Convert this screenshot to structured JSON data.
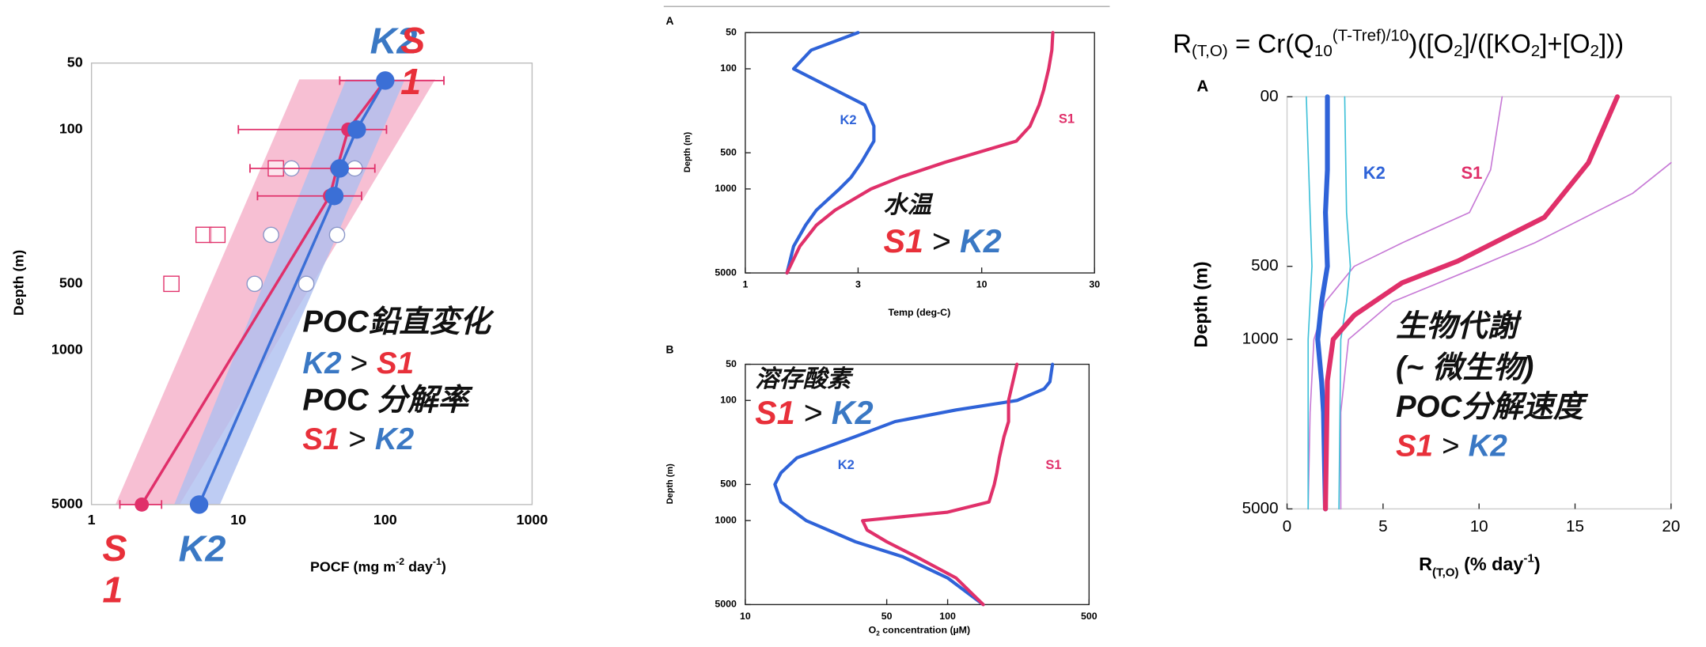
{
  "chart_data": [
    {
      "type": "line",
      "xlog": true,
      "ylog": true,
      "y_inverted": true,
      "xlim": [
        1,
        1000
      ],
      "ylim": [
        50,
        5000
      ],
      "xticks": [
        1,
        10,
        100,
        1000
      ],
      "yticks": [
        50,
        100,
        500,
        1000,
        5000
      ],
      "xlabel": [
        "POCF (mg m",
        "-2",
        " day",
        "-1",
        ")"
      ],
      "ylabel": "Depth (m)",
      "series": [
        {
          "color": "#e0306a",
          "marker": "square-open",
          "x": [
            18,
            5.8,
            7.2,
            3.5
          ],
          "y": [
            150,
            300,
            300,
            500
          ]
        },
        {
          "color": "#8a96c8",
          "marker": "circle-open",
          "x": [
            23,
            62,
            16.7,
            47,
            12.9,
            29
          ],
          "y": [
            150,
            150,
            300,
            300,
            500,
            500
          ]
        },
        {
          "name": "S1",
          "color": "#e0306a",
          "marker": "circle",
          "x": [
            100,
            56,
            47,
            42,
            2.2
          ],
          "y": [
            60,
            100,
            150,
            200,
            5000
          ],
          "x_low": [
            49,
            10,
            12,
            13.5,
            1.56
          ],
          "x_high": [
            251,
            102,
            85,
            69,
            3
          ]
        },
        {
          "name": "K2",
          "color": "#3b6fd6",
          "marker": "circle",
          "x": [
            100,
            64,
            49,
            45,
            5.4
          ],
          "y": [
            60,
            100,
            150,
            200,
            5000
          ]
        }
      ],
      "annotations": [
        [
          {
            "text": "POC鉛直変化"
          }
        ],
        [
          {
            "text": "K2",
            "color": "#3a78c4"
          },
          {
            "text": ">"
          },
          {
            "text": "S1",
            "color": "#e8303a"
          }
        ],
        [
          {
            "text": "POC 分解率"
          }
        ],
        [
          {
            "text": "S1",
            "color": "#e8303a"
          },
          {
            "text": ">"
          },
          {
            "text": "K2",
            "color": "#3a78c4"
          }
        ]
      ]
    },
    {
      "type": "line",
      "panel": "A",
      "xlog": true,
      "ylog": true,
      "y_inverted": true,
      "xlim": [
        1,
        30
      ],
      "ylim": [
        50,
        5000
      ],
      "xticks": [
        1,
        3,
        10,
        30
      ],
      "yticks": [
        50,
        100,
        500,
        1000,
        5000
      ],
      "xlabel": "Temp (deg-C)",
      "ylabel": "Depth (m)",
      "series": [
        {
          "name": "K2",
          "color": "#2f63d8",
          "x": [
            3.0,
            1.9,
            1.6,
            2.4,
            3.2,
            3.5,
            3.5,
            3.1,
            2.8,
            2.5,
            2.0,
            1.8,
            1.6,
            1.5
          ],
          "y": [
            50,
            70,
            100,
            150,
            200,
            300,
            400,
            600,
            800,
            1000,
            1500,
            2000,
            3000,
            5000
          ]
        },
        {
          "name": "S1",
          "color": "#e0306a",
          "x": [
            20,
            19.8,
            19.2,
            18.3,
            17.5,
            16,
            14,
            7,
            4.5,
            3.4,
            2.4,
            2.0,
            1.7,
            1.5
          ],
          "y": [
            50,
            70,
            100,
            150,
            200,
            300,
            400,
            600,
            800,
            1000,
            1500,
            2000,
            3000,
            5000
          ]
        }
      ],
      "annotations": [
        [
          {
            "text": "水温"
          }
        ],
        [
          {
            "text": "S1",
            "color": "#e8303a"
          },
          {
            "text": ">"
          },
          {
            "text": "K2",
            "color": "#3a78c4"
          }
        ]
      ]
    },
    {
      "type": "line",
      "panel": "B",
      "xlog": true,
      "ylog": true,
      "y_inverted": true,
      "xlim": [
        10,
        500
      ],
      "ylim": [
        50,
        5000
      ],
      "xticks": [
        10,
        50,
        100,
        500
      ],
      "yticks": [
        50,
        100,
        500,
        1000,
        5000
      ],
      "xlabel": [
        "O",
        "2",
        " concentration (µM)"
      ],
      "ylabel": "Depth (m)",
      "series": [
        {
          "name": "K2",
          "color": "#2f63d8",
          "x": [
            330,
            320,
            300,
            220,
            110,
            55,
            35,
            18,
            15,
            14,
            15,
            20,
            35,
            60,
            100,
            150
          ],
          "y": [
            50,
            70,
            80,
            100,
            120,
            150,
            200,
            300,
            400,
            500,
            700,
            1000,
            1500,
            2000,
            3000,
            5000
          ]
        },
        {
          "name": "S1",
          "color": "#e0306a",
          "x": [
            220,
            200,
            200,
            190,
            180,
            175,
            170,
            160,
            100,
            38,
            40,
            50,
            70,
            110,
            150
          ],
          "y": [
            50,
            100,
            150,
            200,
            300,
            400,
            500,
            700,
            850,
            1000,
            1200,
            1500,
            2000,
            3000,
            5000
          ]
        }
      ],
      "annotations": [
        [
          {
            "text": "溶存酸素"
          }
        ],
        [
          {
            "text": "S1",
            "color": "#e8303a"
          },
          {
            "text": ">"
          },
          {
            "text": "K2",
            "color": "#3a78c4"
          }
        ]
      ]
    },
    {
      "type": "line",
      "panel": "A",
      "xlog": false,
      "ylog": true,
      "y_inverted": true,
      "xlim": [
        0,
        20
      ],
      "ylim": [
        100,
        5000
      ],
      "xticks": [
        0,
        5,
        10,
        15,
        20
      ],
      "yticks": [
        {
          "value": 100,
          "label": "00"
        },
        500,
        1000,
        5000
      ],
      "formula": [
        "R",
        "(T,O)",
        " = Cr(Q",
        "10",
        "(T-Tref)/10",
        ")([O",
        "2",
        "]/([KO",
        "2",
        "]+[O",
        "2",
        "]))"
      ],
      "xlabel": [
        "R",
        "(T,O)",
        " (% day",
        "-1",
        ")"
      ],
      "ylabel": "Depth (m)",
      "series": [
        {
          "color": "#c77ad6",
          "x": [
            11.2,
            10.6,
            9.5,
            6,
            3.5,
            2.0,
            1.4,
            1.2,
            1.1
          ],
          "y": [
            100,
            200,
            300,
            400,
            500,
            700,
            1000,
            2000,
            5000
          ]
        },
        {
          "color": "#c77ad6",
          "x": [
            20,
            18,
            12.9,
            10,
            5.5,
            3.2,
            2.8,
            2.8
          ],
          "y": [
            187,
            250,
            400,
            500,
            700,
            1000,
            2000,
            5000
          ]
        },
        {
          "color": "#3ec0d8",
          "x": [
            1.0,
            1.2,
            1.3,
            1.1,
            1.1,
            1.1
          ],
          "y": [
            100,
            300,
            500,
            1000,
            2000,
            5000
          ]
        },
        {
          "color": "#3ec0d8",
          "x": [
            3.0,
            3.1,
            3.3,
            3.1,
            2.8,
            2.7
          ],
          "y": [
            100,
            300,
            500,
            700,
            1000,
            5000
          ]
        },
        {
          "name": "K2",
          "color": "#2f63d8",
          "x": [
            2.1,
            2.1,
            2.0,
            2.1,
            1.8,
            1.6,
            1.8,
            1.9,
            2.0
          ],
          "y": [
            100,
            200,
            300,
            500,
            700,
            1000,
            1500,
            2000,
            5000
          ]
        },
        {
          "name": "S1",
          "color": "#e0306a",
          "x": [
            17.2,
            15.7,
            13.4,
            8.9,
            6,
            3.5,
            2.4,
            2.1,
            2.0
          ],
          "y": [
            100,
            187,
            314,
            475,
            584,
            795,
            1000,
            1480,
            5000
          ]
        }
      ],
      "annotations": [
        [
          {
            "text": "生物代謝"
          }
        ],
        [
          {
            "text": "(~ 微生物)"
          }
        ],
        [
          {
            "text": "POC分解速度"
          }
        ],
        [
          {
            "text": "S1",
            "color": "#e8303a"
          },
          {
            "text": ">"
          },
          {
            "text": "K2",
            "color": "#3a78c4"
          }
        ]
      ]
    }
  ]
}
